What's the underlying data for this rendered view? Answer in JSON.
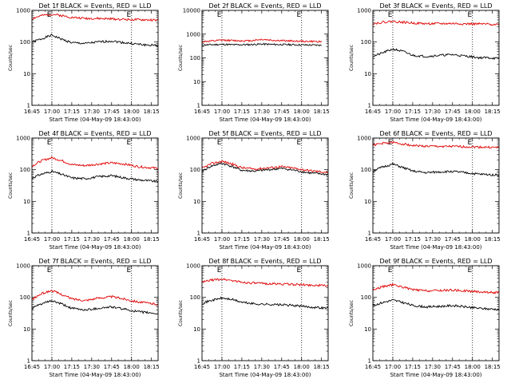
{
  "colors": {
    "events": "#000000",
    "lld": "#e00000",
    "frame": "#000000",
    "background": "#ffffff"
  },
  "chart_data": [
    {
      "type": "line",
      "title": "Det 1f BLACK = Events, RED = LLD",
      "ylabel": "Counts/sec",
      "xlabel": "Start Time (04-May-09 18:43:00)",
      "xlim": [
        "16:45",
        "18:20"
      ],
      "ylim": [
        1,
        1000
      ],
      "yscale": "log",
      "x_ticks": [
        "16:45",
        "17:00",
        "17:15",
        "17:30",
        "17:45",
        "18:00",
        "18:15"
      ],
      "y_ticks": [
        "1",
        "10",
        "100",
        "1000"
      ],
      "markers": [
        {
          "time": "17:00",
          "label": "E"
        },
        {
          "time": "18:00",
          "label": "E"
        }
      ],
      "series": [
        {
          "x": [
            "16:45",
            "16:52",
            "17:00",
            "17:08",
            "17:15",
            "17:25",
            "17:35",
            "17:45",
            "17:55",
            "18:05",
            "18:12",
            "18:20"
          ],
          "values": [
            100,
            125,
            165,
            120,
            95,
            90,
            100,
            108,
            95,
            85,
            80,
            78
          ]
        },
        {
          "x": [
            "16:45",
            "16:52",
            "17:00",
            "17:08",
            "17:15",
            "17:25",
            "17:35",
            "17:45",
            "17:55",
            "18:05",
            "18:12",
            "18:20"
          ],
          "values": [
            550,
            680,
            760,
            680,
            600,
            560,
            550,
            540,
            520,
            505,
            500,
            490
          ]
        }
      ]
    },
    {
      "type": "line",
      "title": "Det 2f BLACK = Events, RED = LLD",
      "ylabel": "Counts/sec",
      "xlabel": "Start Time (04-May-09 18:43:00)",
      "xlim": [
        "16:45",
        "18:20"
      ],
      "ylim": [
        1,
        10000
      ],
      "yscale": "log",
      "x_ticks": [
        "16:45",
        "17:00",
        "17:15",
        "17:30",
        "17:45",
        "18:00",
        "18:15"
      ],
      "y_ticks": [
        "1",
        "10",
        "100",
        "1000",
        "10000"
      ],
      "markers": [
        {
          "time": "17:00",
          "label": "E"
        },
        {
          "time": "18:00",
          "label": "E"
        }
      ],
      "series": [
        {
          "x": [
            "16:45",
            "16:55",
            "17:00",
            "17:10",
            "17:20",
            "17:30",
            "17:40",
            "17:50",
            "18:00",
            "18:10",
            "18:15"
          ],
          "values": [
            350,
            360,
            370,
            355,
            360,
            380,
            365,
            360,
            350,
            345,
            340
          ]
        },
        {
          "x": [
            "16:45",
            "16:55",
            "17:00",
            "17:10",
            "17:20",
            "17:30",
            "17:40",
            "17:50",
            "18:00",
            "18:10",
            "18:15"
          ],
          "values": [
            480,
            520,
            560,
            530,
            520,
            600,
            540,
            520,
            500,
            490,
            480
          ]
        }
      ]
    },
    {
      "type": "line",
      "title": "Det 3f BLACK = Events, RED = LLD",
      "ylabel": "Counts/sec",
      "xlabel": "Start Time (04-May-09 18:43:00)",
      "xlim": [
        "16:45",
        "18:20"
      ],
      "ylim": [
        1,
        1000
      ],
      "yscale": "log",
      "x_ticks": [
        "16:45",
        "17:00",
        "17:15",
        "17:30",
        "17:45",
        "18:00",
        "18:15"
      ],
      "y_ticks": [
        "1",
        "10",
        "100",
        "1000"
      ],
      "markers": [
        {
          "time": "17:00",
          "label": "E"
        },
        {
          "time": "18:00",
          "label": "E"
        }
      ],
      "series": [
        {
          "x": [
            "16:45",
            "16:52",
            "17:00",
            "17:08",
            "17:15",
            "17:25",
            "17:35",
            "17:45",
            "17:55",
            "18:05",
            "18:12",
            "18:20"
          ],
          "values": [
            35,
            45,
            60,
            50,
            38,
            35,
            38,
            40,
            36,
            32,
            32,
            30
          ]
        },
        {
          "x": [
            "16:45",
            "16:52",
            "17:00",
            "17:08",
            "17:15",
            "17:25",
            "17:35",
            "17:45",
            "17:55",
            "18:05",
            "18:12",
            "18:20"
          ],
          "values": [
            380,
            420,
            450,
            420,
            400,
            380,
            380,
            385,
            375,
            370,
            365,
            360
          ]
        }
      ]
    },
    {
      "type": "line",
      "title": "Det 4f BLACK = Events, RED = LLD",
      "ylabel": "Counts/sec",
      "xlabel": "Start Time (04-May-09 18:43:00)",
      "xlim": [
        "16:45",
        "18:20"
      ],
      "ylim": [
        1,
        1000
      ],
      "yscale": "log",
      "x_ticks": [
        "16:45",
        "17:00",
        "17:15",
        "17:30",
        "17:45",
        "18:00",
        "18:15"
      ],
      "y_ticks": [
        "1",
        "10",
        "100",
        "1000"
      ],
      "markers": [
        {
          "time": "17:00",
          "label": "E"
        },
        {
          "time": "18:00",
          "label": "E"
        }
      ],
      "series": [
        {
          "x": [
            "16:45",
            "16:52",
            "17:00",
            "17:08",
            "17:15",
            "17:25",
            "17:35",
            "17:45",
            "17:55",
            "18:05",
            "18:12",
            "18:20"
          ],
          "values": [
            55,
            72,
            88,
            70,
            55,
            52,
            60,
            65,
            55,
            48,
            45,
            42
          ]
        },
        {
          "x": [
            "16:45",
            "16:52",
            "17:00",
            "17:08",
            "17:15",
            "17:25",
            "17:35",
            "17:45",
            "17:55",
            "18:05",
            "18:12",
            "18:20"
          ],
          "values": [
            130,
            190,
            240,
            190,
            145,
            135,
            150,
            165,
            150,
            125,
            118,
            110
          ]
        }
      ]
    },
    {
      "type": "line",
      "title": "Det 5f BLACK = Events, RED = LLD",
      "ylabel": "Counts/sec",
      "xlabel": "Start Time (04-May-09 18:43:00)",
      "xlim": [
        "16:45",
        "18:20"
      ],
      "ylim": [
        1,
        1000
      ],
      "yscale": "log",
      "x_ticks": [
        "16:45",
        "17:00",
        "17:15",
        "17:30",
        "17:45",
        "18:00",
        "18:15"
      ],
      "y_ticks": [
        "1",
        "10",
        "100",
        "1000"
      ],
      "markers": [
        {
          "time": "17:00",
          "label": "E"
        },
        {
          "time": "18:00",
          "label": "E"
        }
      ],
      "series": [
        {
          "x": [
            "16:45",
            "16:52",
            "17:00",
            "17:08",
            "17:15",
            "17:25",
            "17:35",
            "17:45",
            "17:55",
            "18:05",
            "18:12",
            "18:20"
          ],
          "values": [
            90,
            130,
            160,
            125,
            95,
            90,
            100,
            110,
            95,
            80,
            75,
            70
          ]
        },
        {
          "x": [
            "16:45",
            "16:52",
            "17:00",
            "17:08",
            "17:15",
            "17:25",
            "17:35",
            "17:45",
            "17:55",
            "18:05",
            "18:12",
            "18:20"
          ],
          "values": [
            110,
            155,
            185,
            150,
            115,
            105,
            115,
            125,
            110,
            95,
            88,
            82
          ]
        }
      ]
    },
    {
      "type": "line",
      "title": "Det 6f BLACK = Events, RED = LLD",
      "ylabel": "Counts/sec",
      "xlabel": "Start Time (04-May-09 18:43:00)",
      "xlim": [
        "16:45",
        "18:20"
      ],
      "ylim": [
        1,
        1000
      ],
      "yscale": "log",
      "x_ticks": [
        "16:45",
        "17:00",
        "17:15",
        "17:30",
        "17:45",
        "18:00",
        "18:15"
      ],
      "y_ticks": [
        "1",
        "10",
        "100",
        "1000"
      ],
      "markers": [
        {
          "time": "17:00",
          "label": "E"
        },
        {
          "time": "18:00",
          "label": "E"
        }
      ],
      "series": [
        {
          "x": [
            "16:45",
            "16:52",
            "17:00",
            "17:08",
            "17:15",
            "17:25",
            "17:35",
            "17:45",
            "17:55",
            "18:05",
            "18:12",
            "18:20"
          ],
          "values": [
            90,
            120,
            150,
            115,
            90,
            80,
            85,
            88,
            80,
            72,
            70,
            68
          ]
        },
        {
          "x": [
            "16:45",
            "16:52",
            "17:00",
            "17:08",
            "17:15",
            "17:25",
            "17:35",
            "17:45",
            "17:55",
            "18:05",
            "18:12",
            "18:20"
          ],
          "values": [
            600,
            680,
            720,
            650,
            580,
            550,
            545,
            540,
            530,
            520,
            510,
            500
          ]
        }
      ]
    },
    {
      "type": "line",
      "title": "Det 7f BLACK = Events, RED = LLD",
      "ylabel": "Counts/sec",
      "xlabel": "Start Time (04-May-09 18:43:00)",
      "xlim": [
        "16:45",
        "18:20"
      ],
      "ylim": [
        1,
        1000
      ],
      "yscale": "log",
      "x_ticks": [
        "16:45",
        "17:00",
        "17:15",
        "17:30",
        "17:45",
        "18:00",
        "18:15"
      ],
      "y_ticks": [
        "1",
        "10",
        "100",
        "1000"
      ],
      "markers": [
        {
          "time": "17:00",
          "label": "E"
        },
        {
          "time": "18:00",
          "label": "E"
        }
      ],
      "series": [
        {
          "x": [
            "16:45",
            "16:52",
            "17:00",
            "17:08",
            "17:15",
            "17:25",
            "17:35",
            "17:45",
            "17:55",
            "18:05",
            "18:12",
            "18:20"
          ],
          "values": [
            45,
            62,
            78,
            60,
            45,
            40,
            45,
            50,
            42,
            35,
            33,
            30
          ]
        },
        {
          "x": [
            "16:45",
            "16:52",
            "17:00",
            "17:08",
            "17:15",
            "17:25",
            "17:35",
            "17:45",
            "17:55",
            "18:05",
            "18:12",
            "18:20"
          ],
          "values": [
            85,
            130,
            165,
            120,
            90,
            80,
            95,
            105,
            88,
            72,
            66,
            60
          ]
        }
      ]
    },
    {
      "type": "line",
      "title": "Det 8f BLACK = Events, RED = LLD",
      "ylabel": "Counts/sec",
      "xlabel": "Start Time (04-May-09 18:43:00)",
      "xlim": [
        "16:45",
        "18:20"
      ],
      "ylim": [
        1,
        1000
      ],
      "yscale": "log",
      "x_ticks": [
        "16:45",
        "17:00",
        "17:15",
        "17:30",
        "17:45",
        "18:00",
        "18:15"
      ],
      "y_ticks": [
        "1",
        "10",
        "100",
        "1000"
      ],
      "markers": [
        {
          "time": "17:00",
          "label": "E"
        },
        {
          "time": "18:00",
          "label": "E"
        }
      ],
      "series": [
        {
          "x": [
            "16:45",
            "16:52",
            "17:00",
            "17:08",
            "17:15",
            "17:25",
            "17:35",
            "17:45",
            "17:55",
            "18:05",
            "18:12",
            "18:20"
          ],
          "values": [
            65,
            80,
            95,
            85,
            70,
            62,
            60,
            58,
            55,
            50,
            48,
            45
          ]
        },
        {
          "x": [
            "16:45",
            "16:52",
            "17:00",
            "17:08",
            "17:15",
            "17:25",
            "17:35",
            "17:45",
            "17:55",
            "18:05",
            "18:12",
            "18:20"
          ],
          "values": [
            300,
            350,
            380,
            340,
            300,
            280,
            270,
            265,
            255,
            245,
            240,
            235
          ]
        }
      ]
    },
    {
      "type": "line",
      "title": "Det 9f BLACK = Events, RED = LLD",
      "ylabel": "Counts/sec",
      "xlabel": "Start Time (04-May-09 18:43:00)",
      "xlim": [
        "16:45",
        "18:20"
      ],
      "ylim": [
        1,
        1000
      ],
      "yscale": "log",
      "x_ticks": [
        "16:45",
        "17:00",
        "17:15",
        "17:30",
        "17:45",
        "18:00",
        "18:15"
      ],
      "y_ticks": [
        "1",
        "10",
        "100",
        "1000"
      ],
      "markers": [
        {
          "time": "17:00",
          "label": "E"
        },
        {
          "time": "18:00",
          "label": "E"
        }
      ],
      "series": [
        {
          "x": [
            "16:45",
            "16:52",
            "17:00",
            "17:08",
            "17:15",
            "17:25",
            "17:35",
            "17:45",
            "17:55",
            "18:05",
            "18:12",
            "18:20"
          ],
          "values": [
            55,
            68,
            82,
            68,
            55,
            50,
            52,
            55,
            50,
            45,
            43,
            42
          ]
        },
        {
          "x": [
            "16:45",
            "16:52",
            "17:00",
            "17:08",
            "17:15",
            "17:25",
            "17:35",
            "17:45",
            "17:55",
            "18:05",
            "18:12",
            "18:20"
          ],
          "values": [
            170,
            215,
            250,
            210,
            175,
            160,
            165,
            170,
            160,
            150,
            145,
            140
          ]
        }
      ]
    }
  ]
}
